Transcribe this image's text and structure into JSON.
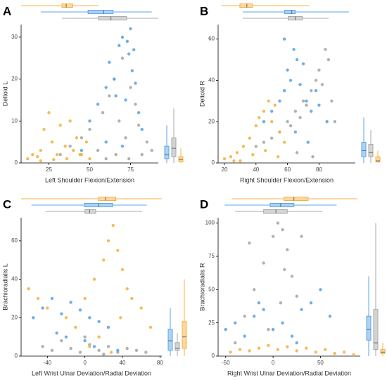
{
  "chart_data": [
    {
      "type": "scatter",
      "panel": "A",
      "xlabel": "Left Shoulder Flexion/Extension",
      "ylabel": "Deltoid L",
      "xlim": [
        8,
        92
      ],
      "ylim": [
        0,
        33
      ],
      "xticks": [
        25,
        50,
        75
      ],
      "yticks": [
        0,
        10,
        20,
        30
      ],
      "series": [
        {
          "color": "#a9a9a9",
          "x": [
            32,
            38,
            45,
            50,
            55,
            58,
            62,
            65,
            68,
            70,
            72,
            75,
            78,
            80,
            85,
            88,
            60,
            66,
            74,
            82
          ],
          "y": [
            2,
            4,
            6,
            8,
            3,
            12,
            16,
            20,
            10,
            25,
            6,
            18,
            14,
            9,
            5,
            3,
            1,
            2,
            1,
            2
          ],
          "xbox": [
            33,
            55.4,
            63,
            72.6,
            92
          ],
          "ybox": [
            0,
            1.5,
            3.5,
            6,
            13
          ]
        },
        {
          "color": "#5ba6e8",
          "x": [
            45,
            50,
            55,
            60,
            62,
            65,
            68,
            70,
            72,
            74,
            75,
            76,
            78,
            80,
            82,
            60,
            70,
            73,
            77,
            66
          ],
          "y": [
            3,
            10,
            14,
            18,
            24,
            20,
            28,
            30,
            15,
            26,
            32,
            22,
            19,
            12,
            8,
            5,
            4,
            29,
            27,
            16
          ],
          "xbox": [
            20,
            49,
            58.5,
            64.3,
            88
          ],
          "ybox": [
            0,
            1,
            2,
            4,
            9
          ]
        },
        {
          "color": "#f7b244",
          "x": [
            12,
            15,
            18,
            20,
            22,
            25,
            27,
            30,
            32,
            35,
            38,
            40,
            42,
            45,
            48,
            50,
            20,
            28,
            36,
            44
          ],
          "y": [
            1,
            2,
            1.5,
            3,
            8,
            12,
            5,
            2,
            9,
            4,
            10,
            3,
            6,
            2,
            5,
            1,
            0.5,
            0.8,
            1,
            2
          ],
          "xbox": [
            8,
            33,
            35.6,
            39.6,
            55.4
          ],
          "ybox": [
            0,
            0.3,
            0.8,
            1.5,
            3.5
          ]
        }
      ]
    },
    {
      "type": "scatter",
      "panel": "B",
      "xlabel": "Right Shoulder Flexion/Extension",
      "ylabel": "Deltoid R",
      "xlim": [
        16,
        103
      ],
      "ylim": [
        0,
        67
      ],
      "xticks": [
        20,
        40,
        60,
        80
      ],
      "yticks": [
        0,
        20,
        40,
        60
      ],
      "series": [
        {
          "color": "#a9a9a9",
          "x": [
            40,
            45,
            50,
            55,
            60,
            62,
            65,
            68,
            70,
            72,
            75,
            78,
            80,
            82,
            84,
            86,
            88,
            90,
            66,
            76
          ],
          "y": [
            8,
            10,
            12,
            15,
            20,
            18,
            25,
            22,
            30,
            28,
            35,
            40,
            45,
            38,
            55,
            50,
            30,
            20,
            5,
            3
          ],
          "xbox": [
            31.6,
            60.4,
            64.9,
            69.3,
            86
          ],
          "ybox": [
            0,
            3,
            5,
            9,
            16
          ]
        },
        {
          "color": "#5ba6e8",
          "x": [
            45,
            50,
            55,
            58,
            60,
            62,
            64,
            66,
            68,
            70,
            72,
            75,
            78,
            80,
            58,
            65,
            73,
            85
          ],
          "y": [
            20,
            25,
            30,
            35,
            45,
            40,
            55,
            50,
            38,
            48,
            30,
            25,
            35,
            28,
            60,
            15,
            10,
            20
          ],
          "xbox": [
            31.6,
            58.2,
            62.7,
            64.9,
            99
          ],
          "ybox": [
            0,
            3,
            6,
            10,
            22
          ]
        },
        {
          "color": "#f7b244",
          "x": [
            20,
            24,
            28,
            32,
            36,
            40,
            42,
            45,
            48,
            50,
            52,
            55,
            58,
            38,
            30,
            46,
            54,
            26
          ],
          "y": [
            2,
            3,
            5,
            8,
            12,
            18,
            22,
            25,
            30,
            20,
            28,
            15,
            10,
            4,
            1,
            6,
            3,
            1
          ],
          "xbox": [
            18,
            29.8,
            34.2,
            37.8,
            73.8
          ],
          "ybox": [
            0,
            0.5,
            1,
            3,
            6
          ]
        }
      ]
    },
    {
      "type": "scatter",
      "panel": "C",
      "xlabel": "Left Wrist Ulnar Deviation/Radial Deviation",
      "ylabel": "Brachioradialis L",
      "xlim": [
        -68,
        82
      ],
      "ylim": [
        0,
        72
      ],
      "xticks": [
        -40,
        0,
        40,
        80
      ],
      "yticks": [
        0,
        20,
        40,
        60
      ],
      "series": [
        {
          "color": "#a9a9a9",
          "x": [
            -45,
            -35,
            -25,
            -15,
            -5,
            5,
            15,
            25,
            35,
            45,
            55,
            65,
            0,
            20
          ],
          "y": [
            5,
            3,
            8,
            4,
            2,
            6,
            3,
            5,
            2,
            4,
            3,
            2,
            10,
            1
          ],
          "xbox": [
            -42,
            0,
            5,
            11.5,
            61
          ],
          "ybox": [
            0,
            3,
            4,
            7,
            12
          ]
        },
        {
          "color": "#5ba6e8",
          "x": [
            -55,
            -45,
            -35,
            -25,
            -15,
            -5,
            5,
            15,
            25,
            -30,
            -20,
            0,
            10,
            35
          ],
          "y": [
            20,
            25,
            30,
            22,
            28,
            24,
            20,
            18,
            15,
            12,
            10,
            8,
            5,
            3
          ],
          "xbox": [
            -57,
            -0.5,
            14.5,
            29.5,
            66
          ],
          "ybox": [
            0,
            3,
            8,
            14,
            25
          ]
        },
        {
          "color": "#f7b244",
          "x": [
            -60,
            -50,
            -40,
            -20,
            -10,
            0,
            10,
            20,
            25,
            30,
            35,
            40,
            45,
            50,
            60,
            70,
            15,
            5,
            28,
            38
          ],
          "y": [
            35,
            30,
            25,
            20,
            15,
            30,
            40,
            50,
            60,
            68,
            55,
            45,
            35,
            30,
            25,
            15,
            10,
            5,
            2,
            20
          ],
          "xbox": [
            -68,
            14.5,
            22,
            33,
            82
          ],
          "ybox": [
            0,
            4,
            10,
            18,
            40
          ]
        }
      ]
    },
    {
      "type": "scatter",
      "panel": "D",
      "xlabel": "Right Wrist Ulnar Deviation/Radial Deviation",
      "ylabel": "Brachioradialis R",
      "xlim": [
        -58,
        92
      ],
      "ylim": [
        0,
        104
      ],
      "xticks": [
        -50,
        0,
        50
      ],
      "yticks": [
        0,
        25,
        50,
        75,
        100
      ],
      "series": [
        {
          "color": "#a9a9a9",
          "x": [
            -40,
            -30,
            -20,
            -10,
            0,
            5,
            10,
            15,
            20,
            25,
            30,
            -5,
            8,
            -25,
            12
          ],
          "y": [
            10,
            30,
            50,
            70,
            90,
            100,
            95,
            80,
            60,
            45,
            90,
            20,
            40,
            85,
            65
          ],
          "xbox": [
            -40,
            -10,
            3,
            15,
            52
          ],
          "ybox": [
            0,
            5,
            10,
            35,
            100
          ]
        },
        {
          "color": "#5ba6e8",
          "x": [
            -50,
            -40,
            -30,
            -20,
            -10,
            0,
            10,
            20,
            30,
            40,
            50,
            60,
            25,
            -15
          ],
          "y": [
            20,
            25,
            15,
            30,
            35,
            20,
            25,
            15,
            35,
            40,
            50,
            30,
            10,
            40
          ],
          "xbox": [
            -51,
            -3,
            8,
            22,
            67
          ],
          "ybox": [
            0,
            12,
            20,
            30,
            60
          ]
        },
        {
          "color": "#f7b244",
          "x": [
            -45,
            -35,
            -25,
            -15,
            -5,
            5,
            15,
            25,
            35,
            45,
            55,
            65,
            75,
            85
          ],
          "y": [
            3,
            5,
            4,
            6,
            8,
            5,
            7,
            4,
            6,
            3,
            5,
            2,
            3,
            1
          ],
          "xbox": [
            -43,
            11.5,
            22,
            37,
            89
          ],
          "ybox": [
            0,
            2,
            3,
            5,
            10
          ]
        }
      ]
    }
  ]
}
